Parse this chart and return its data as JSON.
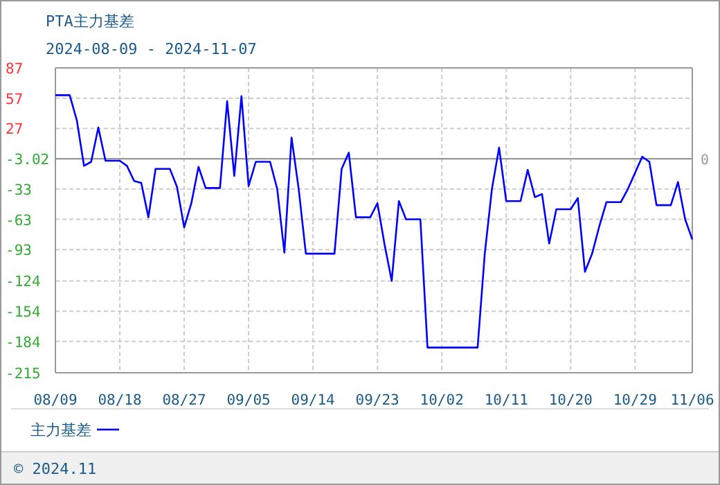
{
  "chart_data": {
    "type": "line",
    "title": "PTA主力基差",
    "subtitle": "2024-08-09 - 2024-11-07",
    "x": [
      "2024-08-09",
      "2024-08-11",
      "2024-08-12",
      "2024-08-13",
      "2024-08-14",
      "2024-08-15",
      "2024-08-16",
      "2024-08-18",
      "2024-08-19",
      "2024-08-20",
      "2024-08-21",
      "2024-08-22",
      "2024-08-23",
      "2024-08-25",
      "2024-08-26",
      "2024-08-27",
      "2024-08-28",
      "2024-08-29",
      "2024-08-30",
      "2024-09-01",
      "2024-09-02",
      "2024-09-03",
      "2024-09-04",
      "2024-09-05",
      "2024-09-06",
      "2024-09-08",
      "2024-09-09",
      "2024-09-10",
      "2024-09-11",
      "2024-09-12",
      "2024-09-13",
      "2024-09-17",
      "2024-09-18",
      "2024-09-19",
      "2024-09-20",
      "2024-09-22",
      "2024-09-23",
      "2024-09-24",
      "2024-09-25",
      "2024-09-26",
      "2024-09-27",
      "2024-09-29",
      "2024-09-30",
      "2024-10-07",
      "2024-10-08",
      "2024-10-09",
      "2024-10-10",
      "2024-10-11",
      "2024-10-13",
      "2024-10-14",
      "2024-10-15",
      "2024-10-16",
      "2024-10-17",
      "2024-10-18",
      "2024-10-20",
      "2024-10-21",
      "2024-10-22",
      "2024-10-23",
      "2024-10-24",
      "2024-10-25",
      "2024-10-27",
      "2024-10-28",
      "2024-10-30",
      "2024-10-31",
      "2024-11-01",
      "2024-11-03",
      "2024-11-04",
      "2024-11-05",
      "2024-11-06"
    ],
    "series": [
      {
        "name": "主力基差",
        "color": "#0000ff",
        "values": [
          60,
          60,
          35,
          -10,
          -6,
          28,
          -5,
          -5,
          -10,
          -25,
          -27,
          -61,
          -13,
          -13,
          -31,
          -71,
          -47,
          -11,
          -32,
          -32,
          54,
          -20,
          59,
          -30,
          -6,
          -6,
          -33,
          -96,
          18,
          -33,
          -97,
          -97,
          -13,
          3,
          -61,
          -61,
          -47,
          -88,
          -124,
          -45,
          -63,
          -63,
          -190,
          -190,
          -97,
          -33,
          8,
          -45,
          -45,
          -14,
          -41,
          -38,
          -87,
          -53,
          -53,
          -42,
          -115,
          -97,
          -70,
          -46,
          -46,
          -33,
          -1,
          -6,
          -49,
          -49,
          -26,
          -63,
          -83
        ]
      }
    ],
    "xlim": [
      "2024-08-09",
      "2024-11-06"
    ],
    "xticks": [
      {
        "value": "2024-08-09",
        "label": "08/09"
      },
      {
        "value": "2024-08-18",
        "label": "08/18"
      },
      {
        "value": "2024-08-27",
        "label": "08/27"
      },
      {
        "value": "2024-09-05",
        "label": "09/05"
      },
      {
        "value": "2024-09-14",
        "label": "09/14"
      },
      {
        "value": "2024-09-23",
        "label": "09/23"
      },
      {
        "value": "2024-10-02",
        "label": "10/02"
      },
      {
        "value": "2024-10-11",
        "label": "10/11"
      },
      {
        "value": "2024-10-20",
        "label": "10/20"
      },
      {
        "value": "2024-10-29",
        "label": "10/29"
      },
      {
        "value": "2024-11-06",
        "label": "11/06"
      }
    ],
    "ylim": [
      -215,
      87
    ],
    "yticks": [
      87,
      57,
      27,
      -3.02,
      -33,
      -63,
      -93,
      -124,
      -154,
      -184,
      -215
    ],
    "ref_lines": [
      {
        "axis": "y",
        "value": -3.02,
        "color": "#999999"
      }
    ],
    "grid": true,
    "legend": "bottom",
    "line_style": "solid",
    "marker": "none",
    "annotations": [
      "0",
      "© 2024.11"
    ]
  }
}
